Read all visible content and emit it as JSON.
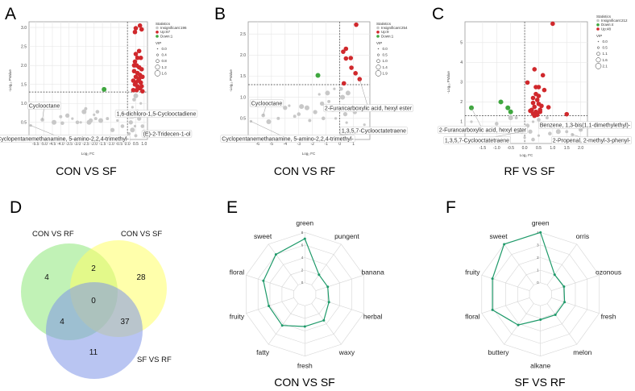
{
  "colors": {
    "up": "#d0282c",
    "down": "#3fa73f",
    "insignificant": "#c8c8c8",
    "radar": "#1f9a6a",
    "venn_a": "#8ee87a",
    "venn_b": "#ffff66",
    "venn_c": "#7f95e8"
  },
  "panels": {
    "A": "A",
    "B": "B",
    "C": "C",
    "D": "D",
    "E": "E",
    "F": "F"
  },
  "chart_data": [
    {
      "type": "scatter",
      "panel": "A",
      "title": "CON VS SF",
      "xlabel": "Log₂ FC",
      "ylabel": "-Log₁₀ PValue",
      "xlim": [
        -5.9,
        1.2
      ],
      "ylim": [
        0.05,
        3.15
      ],
      "xticks": [
        -5.5,
        -5.0,
        -4.5,
        -4.0,
        -3.5,
        -3.0,
        -2.5,
        -2.0,
        -1.5,
        -1.0,
        -0.5,
        0.0,
        0.5,
        1.0
      ],
      "yticks": [
        0.5,
        1.0,
        1.5,
        2.0,
        2.5,
        3.0
      ],
      "threshold_y": 1.3,
      "threshold_x": 0,
      "legend": {
        "title": "Statistics",
        "items": [
          "Insignificant:196",
          "Up:67",
          "Down:1"
        ],
        "groups": [
          "insignificant",
          "up",
          "down"
        ],
        "vip_title": "VIP",
        "vip_values": [
          "0.0",
          "0.4",
          "0.8",
          "1.2",
          "1.6"
        ]
      },
      "annotations": [
        "Cyclooctane",
        "1,6-dichloro-1,5-Cyclooctadiene",
        "(E)-2-Tridecen-1-ol",
        "Cyclopentanemethanamine, 5-amino-2,2,4-trimethyl-"
      ],
      "up": [
        [
          0.75,
          3.05
        ],
        [
          0.5,
          2.98
        ],
        [
          0.45,
          2.88
        ],
        [
          0.85,
          2.95
        ],
        [
          0.7,
          2.38
        ],
        [
          0.5,
          2.3
        ],
        [
          0.6,
          2.2
        ],
        [
          0.45,
          2.1
        ],
        [
          0.8,
          2.2
        ],
        [
          0.55,
          2.0
        ],
        [
          0.7,
          1.95
        ],
        [
          0.85,
          1.9
        ],
        [
          0.4,
          1.85
        ],
        [
          0.6,
          1.8
        ],
        [
          0.75,
          1.75
        ],
        [
          0.5,
          1.7
        ],
        [
          0.9,
          1.7
        ],
        [
          0.35,
          1.6
        ],
        [
          0.65,
          1.6
        ],
        [
          0.8,
          1.55
        ],
        [
          0.45,
          1.5
        ],
        [
          0.6,
          1.45
        ],
        [
          0.85,
          1.45
        ],
        [
          0.35,
          1.35
        ],
        [
          0.55,
          1.35
        ],
        [
          0.75,
          1.4
        ],
        [
          0.9,
          1.32
        ],
        [
          0.5,
          1.55
        ],
        [
          0.7,
          1.65
        ],
        [
          0.4,
          2.0
        ]
      ],
      "down": [
        [
          -1.4,
          1.37
        ]
      ],
      "insignificant": [
        [
          -5.8,
          0.42
        ],
        [
          -5.1,
          0.57
        ],
        [
          -4.4,
          0.5
        ],
        [
          -4.0,
          0.65
        ],
        [
          -3.6,
          0.68
        ],
        [
          -3.3,
          0.6
        ],
        [
          -3.0,
          0.5
        ],
        [
          -2.6,
          0.78
        ],
        [
          -2.5,
          0.86
        ],
        [
          -2.2,
          0.55
        ],
        [
          -2.0,
          0.7
        ],
        [
          -1.8,
          0.78
        ],
        [
          -1.6,
          0.55
        ],
        [
          -1.2,
          0.6
        ],
        [
          -0.9,
          0.3
        ],
        [
          -0.6,
          0.55
        ],
        [
          -0.3,
          0.4
        ],
        [
          -0.2,
          0.7
        ],
        [
          0.1,
          0.2
        ],
        [
          0.2,
          0.5
        ],
        [
          0.3,
          0.9
        ],
        [
          0.4,
          1.1
        ],
        [
          0.5,
          1.2
        ],
        [
          0.6,
          0.8
        ],
        [
          0.7,
          0.6
        ],
        [
          0.8,
          1.0
        ],
        [
          0.9,
          0.4
        ],
        [
          0.3,
          0.3
        ],
        [
          0.5,
          0.15
        ],
        [
          1.0,
          0.25
        ],
        [
          -2.8,
          0.5
        ],
        [
          -3.9,
          0.48
        ],
        [
          -2.3,
          0.5
        ],
        [
          -1.9,
          0.6
        ],
        [
          0.15,
          0.7
        ],
        [
          0.45,
          0.4
        ]
      ]
    },
    {
      "type": "scatter",
      "panel": "B",
      "title": "CON VS RF",
      "xlabel": "Log₂ FC",
      "ylabel": "-Log₁₀ PValue",
      "xlim": [
        -6.7,
        2.2
      ],
      "ylim": [
        0.0,
        2.79
      ],
      "xticks": [
        -6,
        -5,
        -4,
        -3,
        -2,
        -1,
        0,
        1
      ],
      "yticks": [
        0.5,
        1.0,
        1.5,
        2.0,
        2.5
      ],
      "threshold_y": 1.3,
      "threshold_x": 0,
      "legend": {
        "title": "Statistics",
        "items": [
          "Insignificant:254",
          "Up:9",
          "Down:1"
        ],
        "groups": [
          "insignificant",
          "up",
          "down"
        ],
        "vip_title": "VIP",
        "vip_values": [
          "0.0",
          "0.5",
          "1.0",
          "1.4",
          "1.9"
        ]
      },
      "annotations": [
        "Cyclooctane",
        "2-Furancarboxylic acid, hexyl ester",
        "1,3,5,7-Cyclooctatetraene",
        "Cyclopentanemethanamine, 5-amino-2,2,4-trimethyl-"
      ],
      "up": [
        [
          1.2,
          2.72
        ],
        [
          0.45,
          2.15
        ],
        [
          0.25,
          2.08
        ],
        [
          0.45,
          1.92
        ],
        [
          0.8,
          1.93
        ],
        [
          0.85,
          1.7
        ],
        [
          1.15,
          1.57
        ],
        [
          1.45,
          1.43
        ],
        [
          0.3,
          1.33
        ]
      ],
      "down": [
        [
          -1.6,
          1.52
        ]
      ],
      "insignificant": [
        [
          -6.5,
          0.43
        ],
        [
          -5.6,
          0.57
        ],
        [
          -5.2,
          0.42
        ],
        [
          -4.5,
          0.5
        ],
        [
          -4.0,
          0.75
        ],
        [
          -3.7,
          0.8
        ],
        [
          -3.0,
          0.6
        ],
        [
          -2.4,
          0.75
        ],
        [
          -2.2,
          0.45
        ],
        [
          -1.8,
          0.65
        ],
        [
          -1.5,
          1.07
        ],
        [
          -1.2,
          0.5
        ],
        [
          -0.9,
          1.1
        ],
        [
          -0.8,
          0.9
        ],
        [
          -0.5,
          0.7
        ],
        [
          -0.3,
          0.5
        ],
        [
          0.1,
          1.2
        ],
        [
          0.2,
          1.0
        ],
        [
          0.3,
          0.8
        ],
        [
          0.4,
          0.6
        ],
        [
          0.5,
          0.4
        ],
        [
          0.2,
          0.2
        ],
        [
          0.6,
          1.1
        ],
        [
          0.8,
          0.7
        ],
        [
          1.1,
          0.65
        ],
        [
          1.8,
          0.35
        ],
        [
          0.1,
          0.1
        ],
        [
          -2.8,
          0.78
        ],
        [
          -3.3,
          0.55
        ],
        [
          -1.3,
          0.85
        ],
        [
          -0.4,
          1.2
        ]
      ]
    },
    {
      "type": "scatter",
      "panel": "C",
      "title": "RF VS SF",
      "xlabel": "Log₂ FC",
      "ylabel": "-Log₁₀ PValue",
      "xlim": [
        -2.13,
        2.24
      ],
      "ylim": [
        -0.1,
        6.05
      ],
      "xticks": [
        -1.5,
        -1.0,
        -0.5,
        0.0,
        0.5,
        1.0,
        1.5,
        2.0
      ],
      "yticks": [
        1,
        2,
        3,
        4,
        5
      ],
      "threshold_y": 1.3,
      "threshold_x": 0,
      "legend": {
        "title": "Statistics",
        "items": [
          "Insignificant:212",
          "Down:4",
          "Up:48"
        ],
        "groups": [
          "insignificant",
          "down",
          "up"
        ],
        "vip_title": "VIP",
        "vip_values": [
          "0.0",
          "0.5",
          "1.1",
          "1.6",
          "2.1"
        ]
      },
      "annotations": [
        "Benzene, 1,3-bis(1,1-dimethylethyl)-",
        "2-Furancarboxylic acid, hexyl ester",
        "1,3,5,7-Cyclooctatetraene",
        "2-Propenal, 2-methyl-3-phenyl-"
      ],
      "up": [
        [
          1.0,
          5.95
        ],
        [
          0.35,
          3.65
        ],
        [
          0.65,
          3.35
        ],
        [
          0.1,
          2.98
        ],
        [
          0.4,
          2.75
        ],
        [
          0.5,
          2.75
        ],
        [
          0.7,
          2.6
        ],
        [
          0.4,
          2.4
        ],
        [
          0.5,
          2.3
        ],
        [
          0.3,
          2.2
        ],
        [
          0.45,
          2.1
        ],
        [
          0.3,
          1.95
        ],
        [
          0.5,
          1.9
        ],
        [
          0.6,
          1.8
        ],
        [
          0.35,
          1.75
        ],
        [
          0.55,
          1.6
        ],
        [
          0.25,
          1.6
        ],
        [
          0.4,
          1.5
        ],
        [
          0.55,
          1.5
        ],
        [
          0.3,
          1.4
        ],
        [
          0.45,
          1.35
        ],
        [
          0.85,
          1.73
        ],
        [
          1.5,
          1.38
        ],
        [
          0.2,
          1.55
        ],
        [
          0.35,
          1.3
        ]
      ],
      "down": [
        [
          -1.9,
          1.7
        ],
        [
          -0.85,
          2.0
        ],
        [
          -0.6,
          1.7
        ],
        [
          -0.5,
          1.5
        ]
      ],
      "insignificant": [
        [
          -1.9,
          1.0
        ],
        [
          -1.0,
          0.9
        ],
        [
          -0.5,
          1.2
        ],
        [
          -0.3,
          1.2
        ],
        [
          0.1,
          0.8
        ],
        [
          0.3,
          1.0
        ],
        [
          0.5,
          1.1
        ],
        [
          0.7,
          0.9
        ],
        [
          0.8,
          1.2
        ],
        [
          0.2,
          0.5
        ],
        [
          0.5,
          0.3
        ],
        [
          0.9,
          0.4
        ],
        [
          1.2,
          0.5
        ],
        [
          1.5,
          0.5
        ],
        [
          2.0,
          0.6
        ],
        [
          0.0,
          0.2
        ],
        [
          0.3,
          0.1
        ],
        [
          -0.1,
          0.5
        ],
        [
          1.7,
          0.35
        ]
      ]
    },
    {
      "type": "venn",
      "panel": "D",
      "sets": [
        "CON VS RF",
        "CON VS SF",
        "SF VS RF"
      ],
      "regions": {
        "only_con_rf": "4",
        "con_rf_and_con_sf": "2",
        "only_con_sf": "28",
        "all": "0",
        "con_rf_and_sf_rf": "4",
        "con_sf_and_sf_rf": "37",
        "only_sf_rf": "11"
      }
    },
    {
      "type": "radar",
      "panel": "E",
      "title": "CON VS SF",
      "axes": [
        "green",
        "pungent",
        "banana",
        "herbal",
        "waxy",
        "fresh",
        "fatty",
        "fruity",
        "floral",
        "sweet"
      ],
      "values": [
        7.0,
        2.0,
        2.0,
        2.2,
        3.3,
        3.3,
        4.3,
        4.2,
        5.1,
        6.0
      ],
      "rticks": [
        "0",
        "2",
        "4",
        "6",
        "8"
      ],
      "rmax": 8
    },
    {
      "type": "radar",
      "panel": "F",
      "title": "SF VS RF",
      "axes": [
        "green",
        "orris",
        "ozonous",
        "fresh",
        "melon",
        "alkane",
        "buttery",
        "floral",
        "fruity",
        "sweet"
      ],
      "values": [
        4.0,
        1.0,
        1.05,
        1.1,
        1.1,
        1.1,
        2.1,
        3.1,
        3.1,
        4.0
      ],
      "rticks": [
        "0",
        "1",
        "2",
        "3",
        "4"
      ],
      "rmax": 4
    }
  ]
}
